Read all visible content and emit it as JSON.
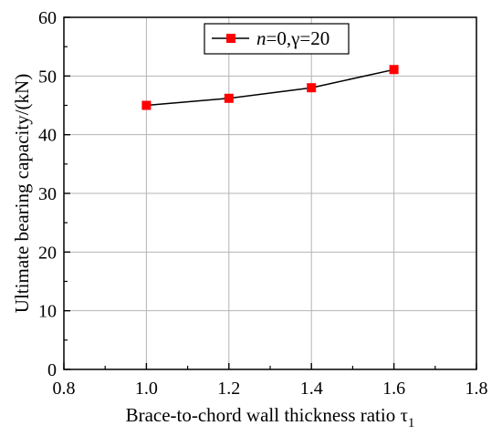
{
  "chart_data": {
    "type": "line",
    "title": "",
    "xlabel": "Brace-to-chord wall thickness ratio τ",
    "xlabel_subscript": "1",
    "ylabel": "Ultimate bearing capacity/(kN)",
    "xlim": [
      0.8,
      1.8
    ],
    "ylim": [
      0,
      60
    ],
    "x_ticks": [
      0.8,
      1.0,
      1.2,
      1.4,
      1.6,
      1.8
    ],
    "x_tick_labels": [
      "0.8",
      "1.0",
      "1.2",
      "1.4",
      "1.6",
      "1.8"
    ],
    "y_ticks": [
      0,
      10,
      20,
      30,
      40,
      50,
      60
    ],
    "y_tick_labels": [
      "0",
      "10",
      "20",
      "30",
      "40",
      "50",
      "60"
    ],
    "grid": true,
    "legend_position": "top-right",
    "series": [
      {
        "legend_parts": [
          {
            "text": "n",
            "italic": true
          },
          {
            "text": "=0,γ=20",
            "italic": false
          }
        ],
        "x": [
          1.0,
          1.2,
          1.4,
          1.6
        ],
        "values": [
          45.0,
          46.2,
          48.0,
          51.1
        ],
        "line_color": "#000000",
        "marker": "square",
        "marker_color": "#ff0000"
      }
    ]
  }
}
